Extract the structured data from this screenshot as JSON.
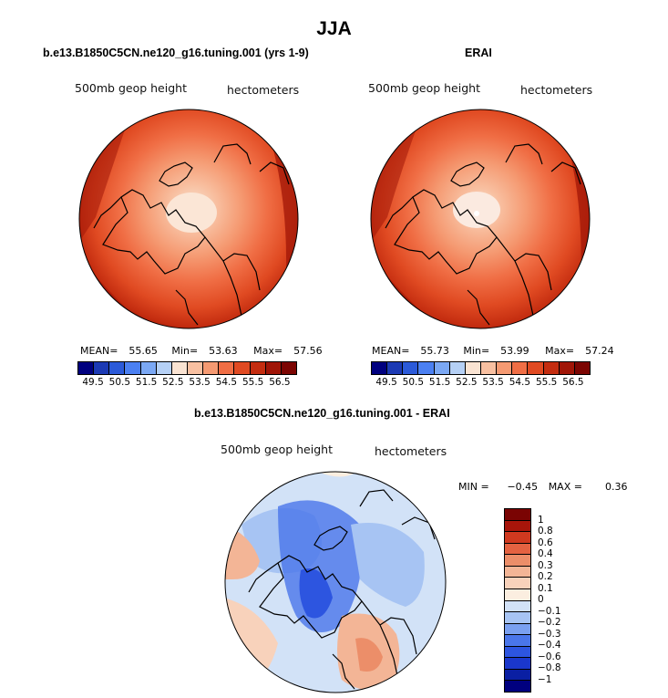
{
  "title": "JJA",
  "colors": {
    "abs_scale": [
      "#00007f",
      "#1c3ab4",
      "#2b5ad9",
      "#4b80f2",
      "#7ba8f4",
      "#b5d0f5",
      "#f9e3d2",
      "#f8c0a1",
      "#f59a72",
      "#f06e45",
      "#e04a22",
      "#c42d10",
      "#a01507",
      "#7c0502"
    ],
    "diff_scale": [
      "#00007f",
      "#0a1fa3",
      "#1a37cc",
      "#2d55e0",
      "#4a76ea",
      "#7aa0f0",
      "#a7c4f3",
      "#d2e2f7",
      "#fbeee0",
      "#f8d2bb",
      "#f3b596",
      "#ec8e69",
      "#e46241",
      "#d0391f",
      "#a8150a",
      "#7a0403"
    ]
  },
  "panels": [
    {
      "title": "b.e13.B1850C5CN.ne120_g16.tuning.001 (yrs 1-9)",
      "variable": "500mb geop height",
      "units": "hectometers",
      "stats": {
        "mean_label": "MEAN=",
        "mean": "55.65",
        "min_label": "Min=",
        "min": "53.63",
        "max_label": "Max=",
        "max": "57.56"
      },
      "colorbar_ticks": [
        "49.5",
        "50.5",
        "51.5",
        "52.5",
        "53.5",
        "54.5",
        "55.5",
        "56.5"
      ]
    },
    {
      "title": "ERAI",
      "variable": "500mb geop height",
      "units": "hectometers",
      "stats": {
        "mean_label": "MEAN=",
        "mean": "55.73",
        "min_label": "Min=",
        "min": "53.99",
        "max_label": "Max=",
        "max": "57.24"
      },
      "colorbar_ticks": [
        "49.5",
        "50.5",
        "51.5",
        "52.5",
        "53.5",
        "54.5",
        "55.5",
        "56.5"
      ]
    }
  ],
  "diff_panel": {
    "title": "b.e13.B1850C5CN.ne120_g16.tuning.001 - ERAI",
    "variable": "500mb geop height",
    "units": "hectometers",
    "min_label": "MIN =",
    "min": "−0.45",
    "max_label": "MAX =",
    "max": "0.36",
    "colorbar_ticks": [
      "1",
      "0.8",
      "0.6",
      "0.4",
      "0.3",
      "0.2",
      "0.1",
      "0",
      "−0.1",
      "−0.2",
      "−0.3",
      "−0.4",
      "−0.6",
      "−0.8",
      "−1"
    ]
  },
  "chart_data": [
    {
      "type": "heatmap",
      "title": "b.e13.B1850C5CN.ne120_g16.tuning.001 (yrs 1-9)",
      "projection": "north polar stereographic",
      "variable": "500mb geop height",
      "units": "hectometers",
      "contour_levels": [
        49.5,
        50.5,
        51.5,
        52.5,
        53.5,
        54.5,
        55.5,
        56.5
      ],
      "mean": 55.65,
      "min": 53.63,
      "max": 57.56
    },
    {
      "type": "heatmap",
      "title": "ERAI",
      "projection": "north polar stereographic",
      "variable": "500mb geop height",
      "units": "hectometers",
      "contour_levels": [
        49.5,
        50.5,
        51.5,
        52.5,
        53.5,
        54.5,
        55.5,
        56.5
      ],
      "mean": 55.73,
      "min": 53.99,
      "max": 57.24
    },
    {
      "type": "heatmap",
      "title": "b.e13.B1850C5CN.ne120_g16.tuning.001 - ERAI",
      "projection": "north polar stereographic",
      "variable": "500mb geop height",
      "units": "hectometers",
      "contour_levels": [
        -1,
        -0.8,
        -0.6,
        -0.4,
        -0.3,
        -0.2,
        -0.1,
        0,
        0.1,
        0.2,
        0.3,
        0.4,
        0.6,
        0.8,
        1
      ],
      "min": -0.45,
      "max": 0.36
    }
  ]
}
